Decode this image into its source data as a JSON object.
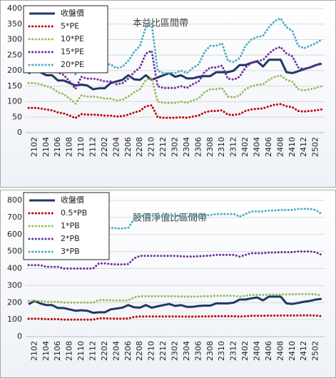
{
  "chart_data": [
    {
      "type": "line",
      "title": "本益比區間帶",
      "legend": "upper left",
      "grid": true,
      "categories": [
        null,
        "2102",
        null,
        "2104",
        null,
        "2106",
        null,
        "2108",
        null,
        "2110",
        null,
        "2112",
        null,
        "2202",
        null,
        "2204",
        null,
        "2206",
        null,
        "2208",
        null,
        "2210",
        null,
        "2212",
        null,
        "2302",
        null,
        "2304",
        null,
        "2306",
        null,
        "2308",
        null,
        "2310",
        null,
        "2312",
        null,
        "2402",
        null,
        "2404",
        null,
        "2406",
        null,
        "2408",
        null,
        "2410",
        null,
        "2412",
        null,
        "2502",
        null
      ],
      "ylim": [
        0,
        400
      ],
      "yticks": [
        0,
        50,
        100,
        150,
        200,
        250,
        300,
        350,
        400
      ],
      "series": [
        {
          "name": "收盤價",
          "color": "#1f3864",
          "style": "solid",
          "values": [
            190,
            210,
            195,
            185,
            185,
            168,
            168,
            160,
            152,
            155,
            152,
            140,
            143,
            143,
            160,
            165,
            170,
            185,
            172,
            170,
            185,
            170,
            178,
            185,
            192,
            180,
            185,
            175,
            175,
            180,
            182,
            182,
            195,
            195,
            195,
            200,
            218,
            218,
            225,
            230,
            213,
            235,
            235,
            235,
            195,
            192,
            198,
            205,
            210,
            218,
            222
          ]
        },
        {
          "name": "5*PE",
          "color": "#c00000",
          "style": "dotted",
          "values": [
            80,
            80,
            78,
            75,
            72,
            65,
            62,
            55,
            47,
            60,
            58,
            58,
            57,
            55,
            55,
            52,
            53,
            58,
            65,
            70,
            85,
            88,
            50,
            48,
            48,
            48,
            50,
            48,
            52,
            55,
            65,
            70,
            70,
            72,
            58,
            57,
            60,
            70,
            75,
            77,
            78,
            85,
            90,
            92,
            85,
            82,
            70,
            68,
            70,
            72,
            75
          ]
        },
        {
          "name": "10*PE",
          "color": "#9bbb59",
          "style": "dotted",
          "values": [
            160,
            160,
            156,
            150,
            144,
            130,
            124,
            110,
            94,
            120,
            116,
            116,
            114,
            110,
            110,
            104,
            106,
            116,
            130,
            140,
            170,
            176,
            100,
            96,
            96,
            96,
            100,
            96,
            104,
            110,
            130,
            140,
            140,
            144,
            116,
            114,
            120,
            140,
            150,
            154,
            156,
            170,
            180,
            184,
            170,
            164,
            140,
            136,
            140,
            144,
            150
          ]
        },
        {
          "name": "15*PE",
          "color": "#7030a0",
          "style": "dotted",
          "values": [
            240,
            240,
            234,
            225,
            216,
            195,
            186,
            165,
            141,
            180,
            174,
            174,
            171,
            165,
            165,
            156,
            159,
            174,
            195,
            210,
            255,
            264,
            150,
            144,
            144,
            144,
            150,
            144,
            156,
            165,
            195,
            210,
            210,
            216,
            174,
            171,
            180,
            210,
            225,
            231,
            234,
            255,
            270,
            276,
            255,
            246,
            210,
            204,
            210,
            216,
            225
          ]
        },
        {
          "name": "20*PE",
          "color": "#4bacc6",
          "style": "dotted",
          "values": [
            320,
            320,
            312,
            300,
            288,
            260,
            248,
            220,
            188,
            240,
            232,
            232,
            228,
            220,
            220,
            208,
            212,
            232,
            260,
            280,
            340,
            352,
            200,
            192,
            192,
            192,
            200,
            192,
            208,
            220,
            260,
            280,
            280,
            288,
            232,
            228,
            240,
            280,
            300,
            308,
            312,
            340,
            360,
            368,
            340,
            328,
            280,
            272,
            280,
            288,
            300
          ]
        }
      ]
    },
    {
      "type": "line",
      "title": "股價淨值比區間帶",
      "legend": "upper left",
      "grid": true,
      "categories": [
        null,
        "2102",
        null,
        "2104",
        null,
        "2106",
        null,
        "2108",
        null,
        "2110",
        null,
        "2112",
        null,
        "2202",
        null,
        "2204",
        null,
        "2206",
        null,
        "2208",
        null,
        "2210",
        null,
        "2212",
        null,
        "2302",
        null,
        "2304",
        null,
        "2306",
        null,
        "2308",
        null,
        "2310",
        null,
        "2312",
        null,
        "2402",
        null,
        "2404",
        null,
        "2406",
        null,
        "2408",
        null,
        "2410",
        null,
        "2412",
        null,
        "2502",
        null
      ],
      "ylim": [
        0,
        800
      ],
      "yticks": [
        0,
        100,
        200,
        300,
        400,
        500,
        600,
        700,
        800
      ],
      "series": [
        {
          "name": "收盤價",
          "color": "#1f3864",
          "style": "solid",
          "values": [
            190,
            210,
            195,
            185,
            185,
            168,
            168,
            160,
            152,
            155,
            152,
            140,
            143,
            143,
            160,
            165,
            170,
            185,
            172,
            170,
            185,
            170,
            178,
            185,
            192,
            180,
            185,
            175,
            175,
            180,
            182,
            182,
            195,
            195,
            195,
            200,
            218,
            218,
            225,
            230,
            213,
            235,
            235,
            235,
            195,
            192,
            198,
            205,
            210,
            218,
            222
          ]
        },
        {
          "name": "0.5*PB",
          "color": "#c00000",
          "style": "dotted",
          "values": [
            105,
            105,
            105,
            102.5,
            102.5,
            102.5,
            100,
            100,
            100,
            100,
            100,
            100,
            107.5,
            107.5,
            106.5,
            106,
            106,
            106.5,
            115,
            118.5,
            118.5,
            118.5,
            118.5,
            118.5,
            118.5,
            118.5,
            118,
            117.5,
            117.5,
            118,
            118.5,
            119,
            120,
            120,
            120,
            120,
            117.5,
            120,
            122.5,
            122.5,
            122.5,
            123.5,
            123.5,
            124,
            124,
            124,
            125,
            125,
            125,
            124,
            120
          ]
        },
        {
          "name": "1*PB",
          "color": "#9bbb59",
          "style": "dotted",
          "values": [
            210,
            210,
            210,
            205,
            205,
            205,
            200,
            200,
            200,
            200,
            200,
            200,
            215,
            215,
            213,
            212,
            212,
            213,
            230,
            237,
            237,
            237,
            237,
            237,
            237,
            237,
            236,
            235,
            235,
            236,
            237,
            238,
            240,
            240,
            240,
            240,
            235,
            240,
            245,
            245,
            245,
            247,
            247,
            248,
            248,
            248,
            250,
            250,
            250,
            248,
            240
          ]
        },
        {
          "name": "2*PB",
          "color": "#7030a0",
          "style": "dotted",
          "values": [
            420,
            420,
            420,
            410,
            410,
            410,
            400,
            400,
            400,
            400,
            400,
            400,
            430,
            430,
            426,
            424,
            424,
            426,
            460,
            474,
            474,
            474,
            474,
            474,
            474,
            474,
            472,
            470,
            470,
            472,
            474,
            476,
            480,
            480,
            480,
            480,
            470,
            480,
            490,
            490,
            490,
            494,
            494,
            496,
            496,
            496,
            500,
            500,
            500,
            496,
            480
          ]
        },
        {
          "name": "3*PB",
          "color": "#4bacc6",
          "style": "dotted",
          "values": [
            630,
            630,
            630,
            615,
            615,
            615,
            600,
            600,
            600,
            600,
            600,
            600,
            645,
            645,
            639,
            636,
            636,
            639,
            690,
            711,
            711,
            711,
            711,
            711,
            711,
            711,
            708,
            705,
            705,
            708,
            711,
            714,
            720,
            720,
            720,
            720,
            705,
            720,
            735,
            735,
            735,
            741,
            741,
            744,
            744,
            744,
            750,
            750,
            750,
            744,
            720
          ]
        }
      ]
    }
  ]
}
